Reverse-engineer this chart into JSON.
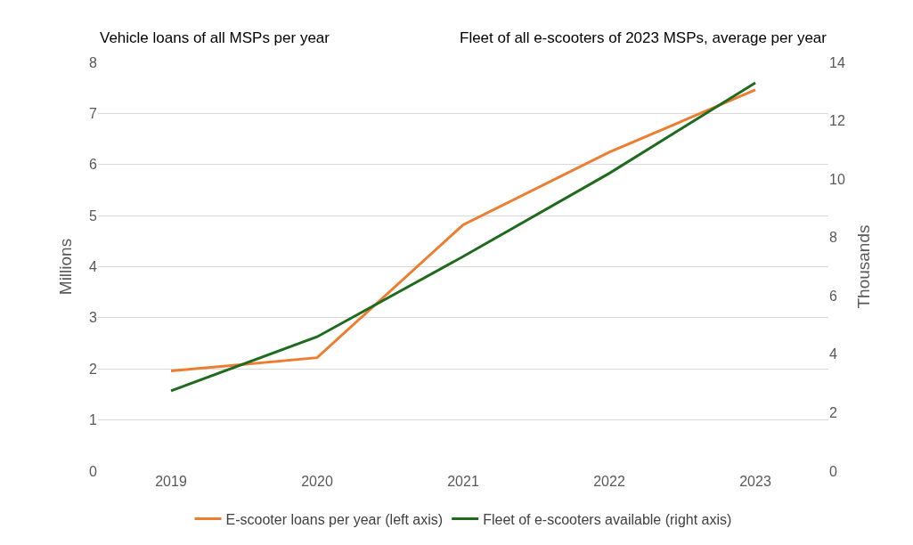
{
  "chart_data": {
    "type": "line",
    "annotations": [
      "Vehicle loans of all MSPs per year",
      "Fleet of all e-scooters of 2023 MSPs, average per year"
    ],
    "ylabel": "Millions",
    "y2label": "Thousands",
    "categories": [
      "2019",
      "2020",
      "2021",
      "2022",
      "2023"
    ],
    "series": [
      {
        "name": "E-scooter loans per year (left axis)",
        "color": "#ed7d31",
        "values": [
          1.96,
          2.22,
          4.82,
          6.24,
          7.46
        ]
      },
      {
        "name": "Fleet of e-scooters available (right axis)",
        "color": "#1e6b1e",
        "axis": "y2",
        "values": [
          2.75,
          4.6,
          7.35,
          10.2,
          13.3
        ]
      }
    ],
    "ylim": [
      0,
      8
    ],
    "yticks": [
      0,
      1,
      2,
      3,
      4,
      5,
      6,
      7,
      8
    ],
    "y2lim": [
      0,
      14
    ],
    "y2ticks": [
      0,
      2,
      4,
      6,
      8,
      10,
      12,
      14
    ],
    "grid": "y",
    "legend": "bottom",
    "marker": "none",
    "line_style": "solid"
  }
}
